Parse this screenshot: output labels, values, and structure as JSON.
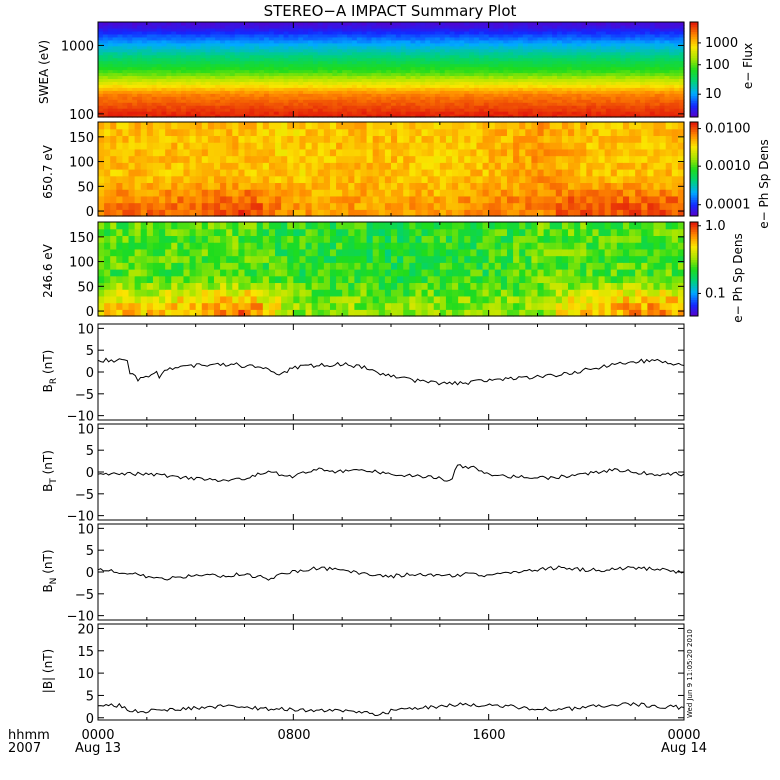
{
  "title": "STEREO−A IMPACT Summary Plot",
  "timestamp": "Wed Jun 9 11:05:20 2010",
  "x_axis": {
    "hhmm_label": "hhmm",
    "year_label": "2007",
    "ticks": [
      "0000",
      "0800",
      "1600",
      "0000"
    ],
    "dates": [
      "Aug 13",
      "",
      "",
      "Aug 14"
    ]
  },
  "colors": {
    "line": "#000000",
    "frame": "#000000",
    "spectrogram_hot": "#e03a10",
    "spectrogram_cold": "#1010d0"
  },
  "panels": {
    "swea": {
      "ylabel": "SWEA (eV)",
      "yticks": [
        "1000",
        "100"
      ],
      "colorbar_label": "e− Flux",
      "colorbar_ticks": [
        "1000",
        "100",
        "10"
      ]
    },
    "pad650": {
      "ylabel": "650.7 eV",
      "yticks": [
        "150",
        "100",
        "50",
        "0"
      ],
      "colorbar_label": "e− Ph Sp Dens",
      "colorbar_ticks": [
        "0.0100",
        "0.0010",
        "0.0001"
      ]
    },
    "pad246": {
      "ylabel": "246.6 eV",
      "yticks": [
        "150",
        "100",
        "50",
        "0"
      ],
      "colorbar_label": "e− Ph Sp Dens",
      "colorbar_ticks": [
        "1.0",
        "0.1"
      ]
    },
    "br": {
      "ylabel": "B",
      "ylabel_sub": "R",
      "ylabel_unit": " (nT)",
      "yticks": [
        "10",
        "5",
        "0",
        "−5",
        "−10"
      ]
    },
    "bt": {
      "ylabel": "B",
      "ylabel_sub": "T",
      "ylabel_unit": " (nT)",
      "yticks": [
        "10",
        "5",
        "0",
        "−5",
        "−10"
      ]
    },
    "bn": {
      "ylabel": "B",
      "ylabel_sub": "N",
      "ylabel_unit": " (nT)",
      "yticks": [
        "10",
        "5",
        "0",
        "−5",
        "−10"
      ]
    },
    "bmag": {
      "ylabel": "|B| (nT)",
      "yticks": [
        "20",
        "15",
        "10",
        "5",
        "0"
      ]
    }
  },
  "chart_data": [
    {
      "type": "heatmap",
      "ylabel": "SWEA (eV)",
      "y_scale": "log",
      "ylim": [
        90,
        2200
      ],
      "colorbar": {
        "label": "e− Flux",
        "scale": "log",
        "range": [
          3,
          7000
        ]
      },
      "x": [
        0,
        4,
        8,
        12,
        16,
        20,
        24
      ],
      "profile_energy": [
        100,
        200,
        400,
        1000,
        2000
      ],
      "profile_flux": [
        6000,
        2500,
        200,
        25,
        4
      ]
    },
    {
      "type": "heatmap",
      "ylabel": "650.7 eV",
      "ylim": [
        -10,
        180
      ],
      "colorbar": {
        "label": "e− Ph Sp Dens",
        "scale": "log",
        "range": [
          6e-05,
          0.012
        ]
      },
      "x": [
        0,
        2,
        4,
        6,
        8,
        10,
        12,
        14,
        16,
        18,
        20,
        22,
        24
      ],
      "high_pitch_level": [
        0.004,
        0.004,
        0.004,
        0.004,
        0.0035,
        0.004,
        0.004,
        0.0035,
        0.004,
        0.005,
        0.004,
        0.004,
        0.004
      ],
      "low_pitch_level": [
        0.006,
        0.007,
        0.007,
        0.009,
        0.005,
        0.005,
        0.005,
        0.005,
        0.006,
        0.006,
        0.009,
        0.008,
        0.008
      ]
    },
    {
      "type": "heatmap",
      "ylabel": "246.6 eV",
      "ylim": [
        -10,
        180
      ],
      "colorbar": {
        "label": "e− Ph Sp Dens",
        "scale": "log",
        "range": [
          0.05,
          1.0
        ]
      },
      "x": [
        0,
        2,
        4,
        6,
        8,
        10,
        12,
        14,
        16,
        18,
        20,
        22,
        24
      ],
      "high_pitch_level": [
        0.25,
        0.25,
        0.25,
        0.25,
        0.22,
        0.22,
        0.2,
        0.22,
        0.22,
        0.25,
        0.25,
        0.25,
        0.25
      ],
      "low_pitch_level": [
        0.5,
        0.5,
        0.55,
        0.7,
        0.3,
        0.3,
        0.3,
        0.3,
        0.3,
        0.3,
        0.55,
        0.6,
        0.6
      ]
    },
    {
      "type": "line",
      "ylabel": "B_R (nT)",
      "ylim": [
        -11,
        11
      ],
      "x": [
        0,
        0.7,
        1.2,
        1.3,
        1.6,
        1.7,
        2.0,
        2.4,
        2.5,
        2.8,
        3.5,
        4.5,
        5.5,
        6.5,
        7.0,
        7.5,
        8.0,
        9.0,
        10.0,
        11.0,
        11.5,
        12.0,
        13.0,
        14.0,
        15.0,
        16.0,
        17.0,
        18.0,
        19.0,
        20.0,
        21.0,
        22.0,
        23.0,
        23.7,
        24.0
      ],
      "y": [
        2.7,
        2.7,
        2.6,
        0,
        -1.5,
        -1.8,
        -1.0,
        0,
        -1.0,
        0.5,
        1.5,
        1.5,
        1.8,
        1.0,
        0.5,
        -0.5,
        1.0,
        1.5,
        1.8,
        1.0,
        -0.5,
        -1.0,
        -2.0,
        -2.5,
        -2.5,
        -2.0,
        -1.5,
        -1.0,
        -0.5,
        0.5,
        1.5,
        2.5,
        2.5,
        1.8,
        1.5
      ]
    },
    {
      "type": "line",
      "ylabel": "B_T (nT)",
      "ylim": [
        -11,
        11
      ],
      "x": [
        0,
        1.0,
        2.0,
        3.0,
        4.0,
        5.0,
        6.0,
        6.5,
        7.0,
        8.0,
        9.0,
        10.0,
        11.0,
        12.0,
        13.0,
        14.0,
        14.5,
        14.7,
        15.0,
        15.5,
        16.0,
        17.0,
        18.0,
        19.0,
        20.0,
        21.0,
        22.0,
        23.0,
        24.0
      ],
      "y": [
        -0.5,
        -0.3,
        -0.5,
        -1.0,
        -1.5,
        -1.8,
        -1.5,
        -0.5,
        0,
        -1.0,
        0.5,
        0,
        0.3,
        -0.5,
        -1.0,
        -1.5,
        -2.0,
        1.5,
        1.2,
        1.0,
        -0.5,
        -1.0,
        -1.5,
        -1.0,
        -0.5,
        0.5,
        0,
        -0.5,
        -0.5
      ]
    },
    {
      "type": "line",
      "ylabel": "B_N (nT)",
      "ylim": [
        -11,
        11
      ],
      "x": [
        0,
        1.0,
        2.0,
        3.0,
        4.0,
        5.0,
        6.0,
        7.0,
        8.0,
        9.0,
        10.0,
        11.0,
        12.0,
        13.0,
        14.0,
        15.0,
        16.0,
        17.0,
        18.0,
        19.0,
        20.0,
        21.0,
        22.0,
        23.0,
        24.0
      ],
      "y": [
        0.5,
        0,
        -1.0,
        -1.5,
        -0.5,
        -1.0,
        -0.5,
        -1.5,
        0,
        1.0,
        0.5,
        -0.5,
        -1.0,
        -0.5,
        -1.0,
        -0.5,
        -1.0,
        0,
        0.5,
        1.0,
        0.5,
        0.5,
        1.0,
        0.5,
        0
      ]
    },
    {
      "type": "line",
      "ylabel": "|B| (nT)",
      "ylim": [
        -0.5,
        21
      ],
      "x": [
        0,
        1.0,
        1.2,
        2.0,
        3.0,
        4.0,
        5.0,
        6.0,
        7.0,
        8.0,
        9.0,
        10.0,
        11.0,
        11.5,
        12.0,
        13.0,
        14.0,
        15.0,
        16.0,
        17.0,
        18.0,
        19.0,
        20.0,
        21.0,
        22.0,
        23.0,
        24.0
      ],
      "y": [
        2.7,
        2.7,
        1.5,
        1.5,
        2.0,
        2.2,
        2.5,
        2.3,
        2.0,
        1.8,
        1.5,
        1.5,
        1.0,
        0.7,
        1.5,
        2.0,
        2.5,
        3.0,
        2.8,
        2.5,
        2.0,
        1.8,
        2.5,
        2.8,
        3.0,
        2.5,
        2.3
      ]
    }
  ]
}
